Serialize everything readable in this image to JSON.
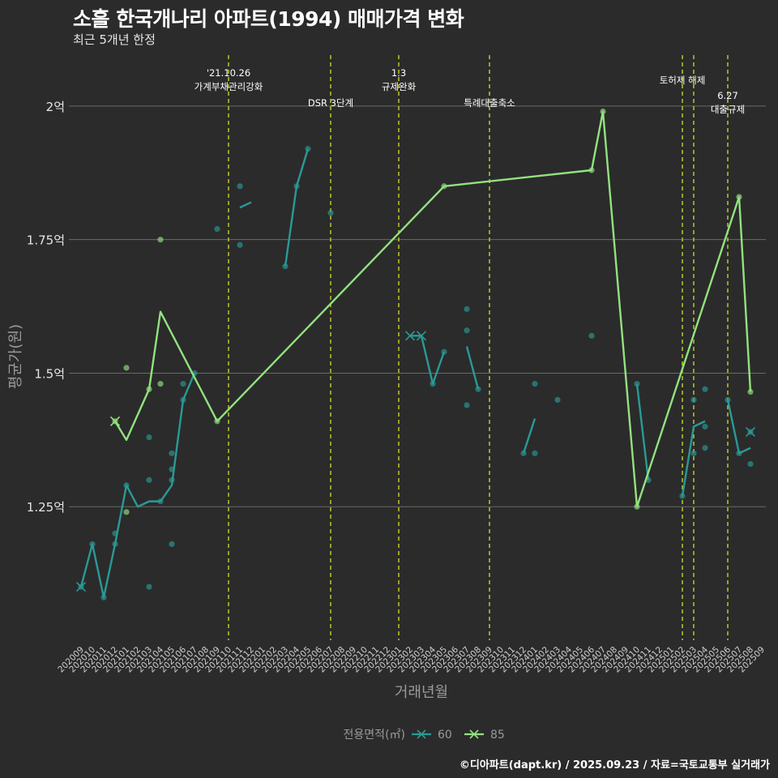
{
  "title": "소흘 한국개나리 아파트(1994) 매매가격 변화",
  "subtitle": "최근 5개년 한정",
  "source": "©디아파트(dapt.kr) / 2025.09.23 / 자료=국토교통부 실거래가",
  "colors": {
    "background": "#2b2b2b",
    "grid": "#6a6a6a",
    "series60": "#2a9a96",
    "series85": "#92e27e",
    "event_line": "#c8d22a",
    "text": "#ffffff",
    "muted": "#9a9a9a"
  },
  "chart_data": {
    "type": "line",
    "title": "소흘 한국개나리 아파트(1994) 매매가격 변화",
    "xlabel": "거래년월",
    "ylabel": "평균가(원)",
    "ylim": [
      1.0,
      2.1
    ],
    "yticks": [
      1.25,
      1.5,
      1.75,
      2.0
    ],
    "ytick_labels": [
      "1.25억",
      "1.5억",
      "1.75억",
      "2억"
    ],
    "categories": [
      "202009",
      "202010",
      "202011",
      "202012",
      "202101",
      "202102",
      "202103",
      "202104",
      "202105",
      "202106",
      "202107",
      "202108",
      "202109",
      "202110",
      "202111",
      "202112",
      "202201",
      "202202",
      "202203",
      "202204",
      "202205",
      "202206",
      "202207",
      "202208",
      "202209",
      "202210",
      "202211",
      "202212",
      "202301",
      "202302",
      "202303",
      "202304",
      "202305",
      "202306",
      "202307",
      "202308",
      "202309",
      "202310",
      "202311",
      "202312",
      "202401",
      "202402",
      "202403",
      "202404",
      "202405",
      "202406",
      "202407",
      "202408",
      "202409",
      "202410",
      "202411",
      "202412",
      "202501",
      "202502",
      "202503",
      "202504",
      "202505",
      "202506",
      "202507",
      "202508",
      "202509"
    ],
    "legend_title": "전용면적(㎡)",
    "legend_position": "bottom",
    "series": [
      {
        "name": "60",
        "color": "#2a9a96",
        "line": [
          [
            "202009",
            1.1
          ],
          [
            "202010",
            1.18
          ],
          [
            "202011",
            1.08
          ],
          [
            "202012",
            1.18
          ],
          [
            "202101",
            1.29
          ],
          [
            "202102",
            1.25
          ],
          [
            "202103",
            1.26
          ],
          [
            "202104",
            1.26
          ],
          [
            "202105",
            1.29
          ],
          [
            "202106",
            1.45
          ],
          [
            "202107",
            1.5
          ],
          null,
          [
            "202111",
            1.81
          ],
          [
            "202112",
            1.82
          ],
          null,
          [
            "202203",
            1.7
          ],
          [
            "202204",
            1.85
          ],
          [
            "202205",
            1.92
          ],
          null,
          [
            "202302",
            1.57
          ],
          [
            "202303",
            1.57
          ],
          [
            "202304",
            1.48
          ],
          [
            "202305",
            1.54
          ],
          null,
          [
            "202307",
            1.55
          ],
          [
            "202308",
            1.47
          ],
          null,
          [
            "202312",
            1.35
          ],
          [
            "202401",
            1.415
          ],
          null,
          [
            "202410",
            1.48
          ],
          [
            "202411",
            1.3
          ],
          null,
          [
            "202502",
            1.27
          ],
          [
            "202503",
            1.4
          ],
          [
            "202504",
            1.41
          ],
          null,
          [
            "202506",
            1.45
          ],
          [
            "202507",
            1.35
          ],
          [
            "202508",
            1.36
          ]
        ],
        "points": [
          [
            "202009",
            1.1
          ],
          [
            "202010",
            1.18
          ],
          [
            "202011",
            1.08
          ],
          [
            "202012",
            1.2
          ],
          [
            "202012",
            1.18
          ],
          [
            "202101",
            1.29
          ],
          [
            "202103",
            1.1
          ],
          [
            "202103",
            1.38
          ],
          [
            "202103",
            1.3
          ],
          [
            "202104",
            1.26
          ],
          [
            "202105",
            1.35
          ],
          [
            "202105",
            1.32
          ],
          [
            "202105",
            1.3
          ],
          [
            "202105",
            1.18
          ],
          [
            "202106",
            1.48
          ],
          [
            "202106",
            1.45
          ],
          [
            "202107",
            1.5
          ],
          [
            "202109",
            1.77
          ],
          [
            "202111",
            1.85
          ],
          [
            "202111",
            1.74
          ],
          [
            "202203",
            1.7
          ],
          [
            "202204",
            1.85
          ],
          [
            "202205",
            1.92
          ],
          [
            "202207",
            1.8
          ],
          [
            "202304",
            1.48
          ],
          [
            "202305",
            1.54
          ],
          [
            "202307",
            1.62
          ],
          [
            "202307",
            1.58
          ],
          [
            "202307",
            1.44
          ],
          [
            "202308",
            1.47
          ],
          [
            "202312",
            1.35
          ],
          [
            "202401",
            1.48
          ],
          [
            "202401",
            1.35
          ],
          [
            "202403",
            1.45
          ],
          [
            "202406",
            1.57
          ],
          [
            "202410",
            1.48
          ],
          [
            "202411",
            1.3
          ],
          [
            "202502",
            1.27
          ],
          [
            "202503",
            1.45
          ],
          [
            "202503",
            1.35
          ],
          [
            "202504",
            1.47
          ],
          [
            "202504",
            1.4
          ],
          [
            "202504",
            1.36
          ],
          [
            "202506",
            1.45
          ],
          [
            "202507",
            1.35
          ],
          [
            "202508",
            1.39
          ],
          [
            "202508",
            1.33
          ]
        ],
        "x_markers": [
          [
            "202009",
            1.1
          ],
          [
            "202302",
            1.57
          ],
          [
            "202303",
            1.57
          ],
          [
            "202508",
            1.39
          ]
        ]
      },
      {
        "name": "85",
        "color": "#92e27e",
        "line": [
          [
            "202012",
            1.41
          ],
          [
            "202101",
            1.375
          ],
          [
            "202103",
            1.47
          ],
          [
            "202104",
            1.615
          ],
          [
            "202109",
            1.41
          ],
          [
            "202305",
            1.85
          ],
          [
            "202406",
            1.88
          ],
          [
            "202407",
            1.99
          ],
          [
            "202410",
            1.25
          ],
          [
            "202507",
            1.83
          ],
          [
            "202508",
            1.465
          ]
        ],
        "points": [
          [
            "202012",
            1.41
          ],
          [
            "202101",
            1.51
          ],
          [
            "202101",
            1.24
          ],
          [
            "202103",
            1.47
          ],
          [
            "202104",
            1.75
          ],
          [
            "202104",
            1.48
          ],
          [
            "202109",
            1.41
          ],
          [
            "202305",
            1.85
          ],
          [
            "202406",
            1.88
          ],
          [
            "202407",
            1.99
          ],
          [
            "202410",
            1.25
          ],
          [
            "202507",
            1.83
          ],
          [
            "202508",
            1.465
          ]
        ],
        "x_markers": [
          [
            "202012",
            1.41
          ]
        ]
      }
    ],
    "events": [
      {
        "month": "202110",
        "label_lines": [
          "'21.10.26",
          "가계부채관리강화"
        ],
        "row": 1
      },
      {
        "month": "202207",
        "label_lines": [
          "DSR 3단계"
        ],
        "row": 2
      },
      {
        "month": "202301",
        "label_lines": [
          "1.3",
          "규제완화"
        ],
        "row": 1
      },
      {
        "month": "202309",
        "label_lines": [
          "특례대출축소"
        ],
        "row": 2
      },
      {
        "month": "202502",
        "label_lines": [
          "토허제 해제"
        ],
        "row": 0
      },
      {
        "month": "202503",
        "label_lines": [],
        "row": 0
      },
      {
        "month": "202506",
        "label_lines": [
          "6.27",
          "대출규제"
        ],
        "row": 3
      }
    ]
  }
}
